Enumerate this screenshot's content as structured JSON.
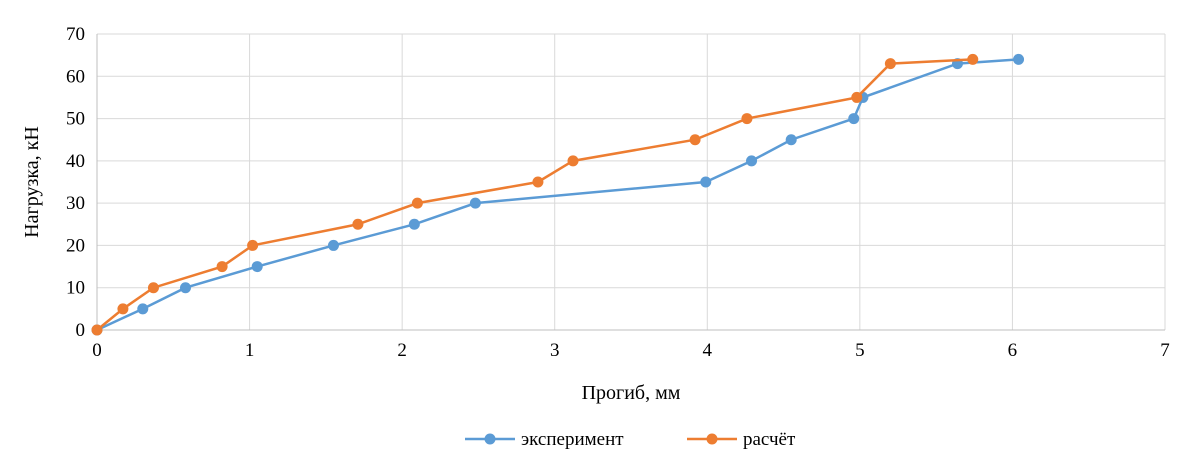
{
  "chart_data": {
    "type": "line",
    "xlabel": "Прогиб, мм",
    "ylabel": "Нагрузка, кН",
    "xlim": [
      0,
      7
    ],
    "ylim": [
      0,
      70
    ],
    "xticks": [
      0,
      1,
      2,
      3,
      4,
      5,
      6,
      7
    ],
    "yticks": [
      0,
      10,
      20,
      30,
      40,
      50,
      60,
      70
    ],
    "grid": true,
    "legend_placement": "bottom",
    "series": [
      {
        "name": "эксперимент",
        "color": "#5B9BD5",
        "x": [
          0,
          0.3,
          0.58,
          1.05,
          1.55,
          2.08,
          2.48,
          3.99,
          4.29,
          4.55,
          4.96,
          5.02,
          5.64,
          6.04
        ],
        "y": [
          0,
          5,
          10,
          15,
          20,
          25,
          30,
          35,
          40,
          45,
          50,
          55,
          63,
          64
        ]
      },
      {
        "name": "расчёт",
        "color": "#ED7D31",
        "x": [
          0,
          0.17,
          0.37,
          0.82,
          1.02,
          1.71,
          2.1,
          2.89,
          3.12,
          3.92,
          4.26,
          4.98,
          5.2,
          5.74
        ],
        "y": [
          0,
          5,
          10,
          15,
          20,
          25,
          30,
          35,
          40,
          45,
          50,
          55,
          63,
          64
        ]
      }
    ]
  }
}
